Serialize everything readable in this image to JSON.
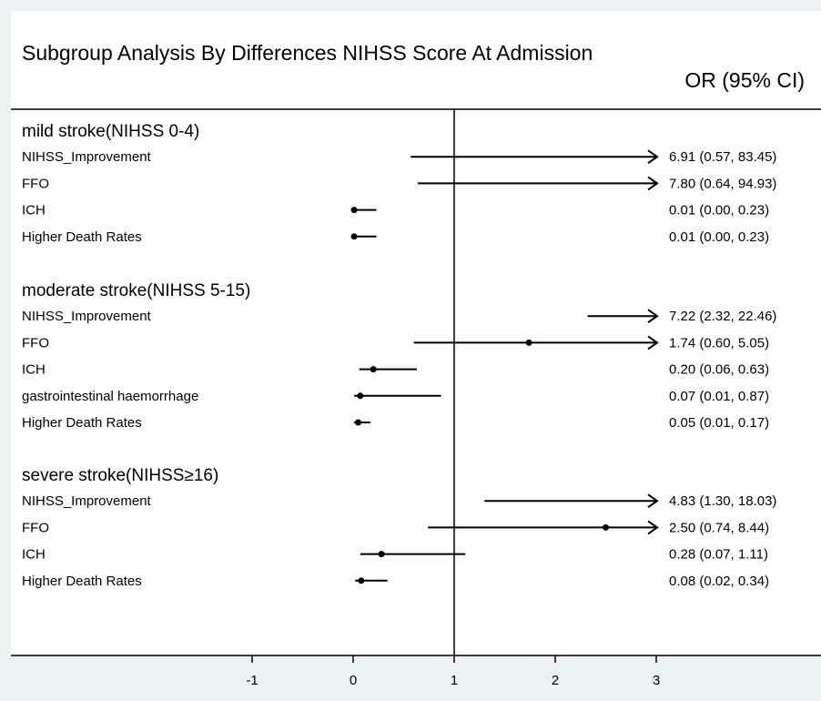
{
  "chart_data": {
    "type": "forest",
    "title": "Subgroup Analysis By Differences NIHSS Score At Admission",
    "effect_header": "OR (95% CI)",
    "reference_line": 1,
    "x_range": [
      -2,
      3.2
    ],
    "x_ticks": [
      -1,
      0,
      1,
      2,
      3
    ],
    "groups": [
      {
        "name": "mild stroke(NIHSS 0-4)",
        "rows": [
          {
            "label": "NIHSS_Improvement",
            "or": 6.91,
            "lower": 0.57,
            "upper": 83.45,
            "text": "6.91 (0.57, 83.45)"
          },
          {
            "label": "FFO",
            "or": 7.8,
            "lower": 0.64,
            "upper": 94.93,
            "text": "7.80 (0.64, 94.93)"
          },
          {
            "label": "ICH",
            "or": 0.01,
            "lower": 0.0,
            "upper": 0.23,
            "text": "0.01 (0.00, 0.23)"
          },
          {
            "label": "Higher Death Rates",
            "or": 0.01,
            "lower": 0.0,
            "upper": 0.23,
            "text": "0.01 (0.00, 0.23)"
          }
        ]
      },
      {
        "name": "moderate stroke(NIHSS 5-15)",
        "rows": [
          {
            "label": "NIHSS_Improvement",
            "or": 7.22,
            "lower": 2.32,
            "upper": 22.46,
            "text": "7.22 (2.32, 22.46)"
          },
          {
            "label": "FFO",
            "or": 1.74,
            "lower": 0.6,
            "upper": 5.05,
            "text": "1.74 (0.60, 5.05)"
          },
          {
            "label": "ICH",
            "or": 0.2,
            "lower": 0.06,
            "upper": 0.63,
            "text": "0.20 (0.06, 0.63)"
          },
          {
            "label": "gastrointestinal haemorrhage",
            "or": 0.07,
            "lower": 0.01,
            "upper": 0.87,
            "text": "0.07 (0.01, 0.87)"
          },
          {
            "label": "Higher Death Rates",
            "or": 0.05,
            "lower": 0.01,
            "upper": 0.17,
            "text": "0.05 (0.01, 0.17)"
          }
        ]
      },
      {
        "name": "severe stroke(NIHSS≥16)",
        "rows": [
          {
            "label": "NIHSS_Improvement",
            "or": 4.83,
            "lower": 1.3,
            "upper": 18.03,
            "text": "4.83 (1.30, 18.03)"
          },
          {
            "label": "FFO",
            "or": 2.5,
            "lower": 0.74,
            "upper": 8.44,
            "text": "2.50 (0.74, 8.44)"
          },
          {
            "label": "ICH",
            "or": 0.28,
            "lower": 0.07,
            "upper": 1.11,
            "text": "0.28 (0.07, 1.11)"
          },
          {
            "label": "Higher Death Rates",
            "or": 0.08,
            "lower": 0.02,
            "upper": 0.34,
            "text": "0.08 (0.02, 0.34)"
          }
        ]
      }
    ],
    "colors": {
      "background": "#eaf2f3",
      "panel": "#ffffff",
      "ink": "#000000"
    }
  }
}
